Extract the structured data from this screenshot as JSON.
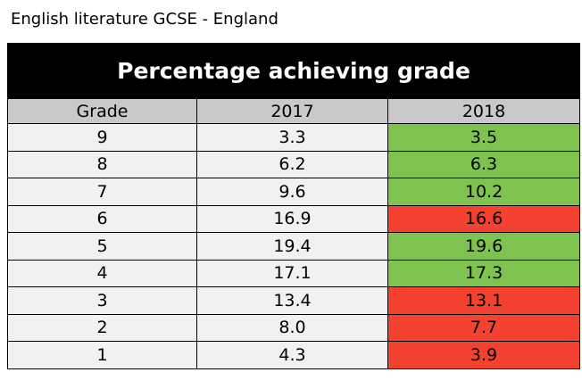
{
  "caption": "English literature GCSE - England",
  "chart_data": {
    "type": "table",
    "title": "Percentage achieving grade",
    "columns": [
      "Grade",
      "2017",
      "2018"
    ],
    "rows": [
      {
        "grade": "9",
        "y2017": "3.3",
        "y2018": "3.5",
        "change": "up"
      },
      {
        "grade": "8",
        "y2017": "6.2",
        "y2018": "6.3",
        "change": "up"
      },
      {
        "grade": "7",
        "y2017": "9.6",
        "y2018": "10.2",
        "change": "up"
      },
      {
        "grade": "6",
        "y2017": "16.9",
        "y2018": "16.6",
        "change": "down"
      },
      {
        "grade": "5",
        "y2017": "19.4",
        "y2018": "19.6",
        "change": "up"
      },
      {
        "grade": "4",
        "y2017": "17.1",
        "y2018": "17.3",
        "change": "up"
      },
      {
        "grade": "3",
        "y2017": "13.4",
        "y2018": "13.1",
        "change": "down"
      },
      {
        "grade": "2",
        "y2017": "8.0",
        "y2018": "7.7",
        "change": "down"
      },
      {
        "grade": "1",
        "y2017": "4.3",
        "y2018": "3.9",
        "change": "down"
      }
    ]
  },
  "colors": {
    "increase": "#7ec34f",
    "decrease": "#f5412f",
    "header_background": "#000000",
    "subheader_background": "#c9c9c9",
    "cell_background": "#f1f1f1"
  }
}
